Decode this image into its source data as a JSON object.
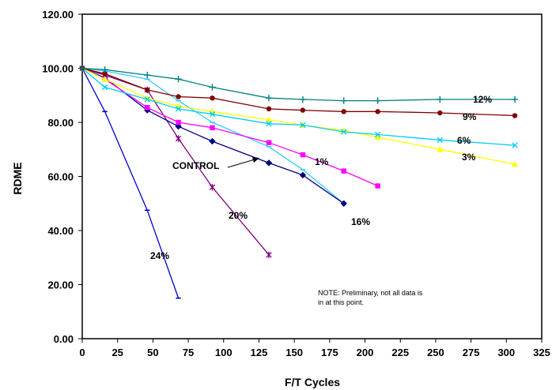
{
  "chart_data": {
    "type": "line",
    "title": "",
    "xlabel": "F/T Cycles",
    "ylabel": "RDME",
    "xlim": [
      0,
      325
    ],
    "ylim": [
      0,
      120
    ],
    "xticks": [
      "0",
      "25",
      "50",
      "75",
      "100",
      "125",
      "150",
      "175",
      "200",
      "225",
      "250",
      "275",
      "300",
      "325"
    ],
    "yticks": [
      "0.00",
      "20.00",
      "40.00",
      "60.00",
      "80.00",
      "100.00",
      "120.00"
    ],
    "grid": false,
    "legend": "none",
    "note": [
      "NOTE: Preliminary, not all data is",
      "in at this point."
    ],
    "series": [
      {
        "name": "24%",
        "color": "#0000cc",
        "marker": "dash",
        "x": [
          0,
          16,
          46,
          68
        ],
        "y": [
          100,
          84,
          47.5,
          15
        ]
      },
      {
        "name": "20%",
        "color": "#800080",
        "marker": "star",
        "x": [
          0,
          16,
          46,
          68,
          92,
          132
        ],
        "y": [
          100,
          97.5,
          92,
          74,
          56,
          31
        ]
      },
      {
        "name": "16%",
        "color": "#33ccff",
        "marker": "dash",
        "x": [
          0,
          16,
          46,
          68,
          92,
          132,
          156,
          185
        ],
        "y": [
          100,
          99,
          96,
          88,
          80,
          71,
          62.5,
          50
        ]
      },
      {
        "name": "CONTROL",
        "color": "#000080",
        "marker": "diamond",
        "x": [
          0,
          16,
          46,
          68,
          92,
          132,
          156,
          185
        ],
        "y": [
          100,
          96.5,
          84.5,
          78.5,
          73,
          65,
          60.5,
          50
        ]
      },
      {
        "name": "1%",
        "color": "#ff00ff",
        "marker": "square",
        "x": [
          0,
          16,
          46,
          68,
          92,
          132,
          156,
          185,
          209
        ],
        "y": [
          100,
          96,
          85.5,
          80,
          78,
          72.5,
          68,
          62,
          56.5
        ]
      },
      {
        "name": "3%",
        "color": "#ffff00",
        "marker": "triangle",
        "x": [
          0,
          16,
          46,
          68,
          92,
          132,
          156,
          185,
          209,
          253,
          306
        ],
        "y": [
          100,
          96,
          89,
          86,
          84,
          81,
          79,
          77,
          74.5,
          70,
          64.5
        ]
      },
      {
        "name": "6%",
        "color": "#00ccff",
        "marker": "x",
        "x": [
          0,
          16,
          46,
          68,
          92,
          132,
          156,
          185,
          209,
          253,
          306
        ],
        "y": [
          100,
          93,
          88.5,
          85,
          83,
          79.5,
          79,
          76.5,
          75.5,
          73.5,
          71.5
        ]
      },
      {
        "name": "9%",
        "color": "#800000",
        "marker": "circle",
        "x": [
          0,
          16,
          46,
          68,
          92,
          132,
          156,
          185,
          209,
          253,
          306
        ],
        "y": [
          100,
          98,
          92,
          89.5,
          89,
          85,
          84.5,
          84,
          84,
          83.5,
          82.5
        ]
      },
      {
        "name": "12%",
        "color": "#008080",
        "marker": "plus",
        "x": [
          0,
          16,
          46,
          68,
          92,
          132,
          156,
          185,
          209,
          253,
          306
        ],
        "y": [
          100,
          99.5,
          97.5,
          96,
          93,
          89,
          88.5,
          88,
          88,
          88.5,
          88.5
        ]
      }
    ]
  }
}
